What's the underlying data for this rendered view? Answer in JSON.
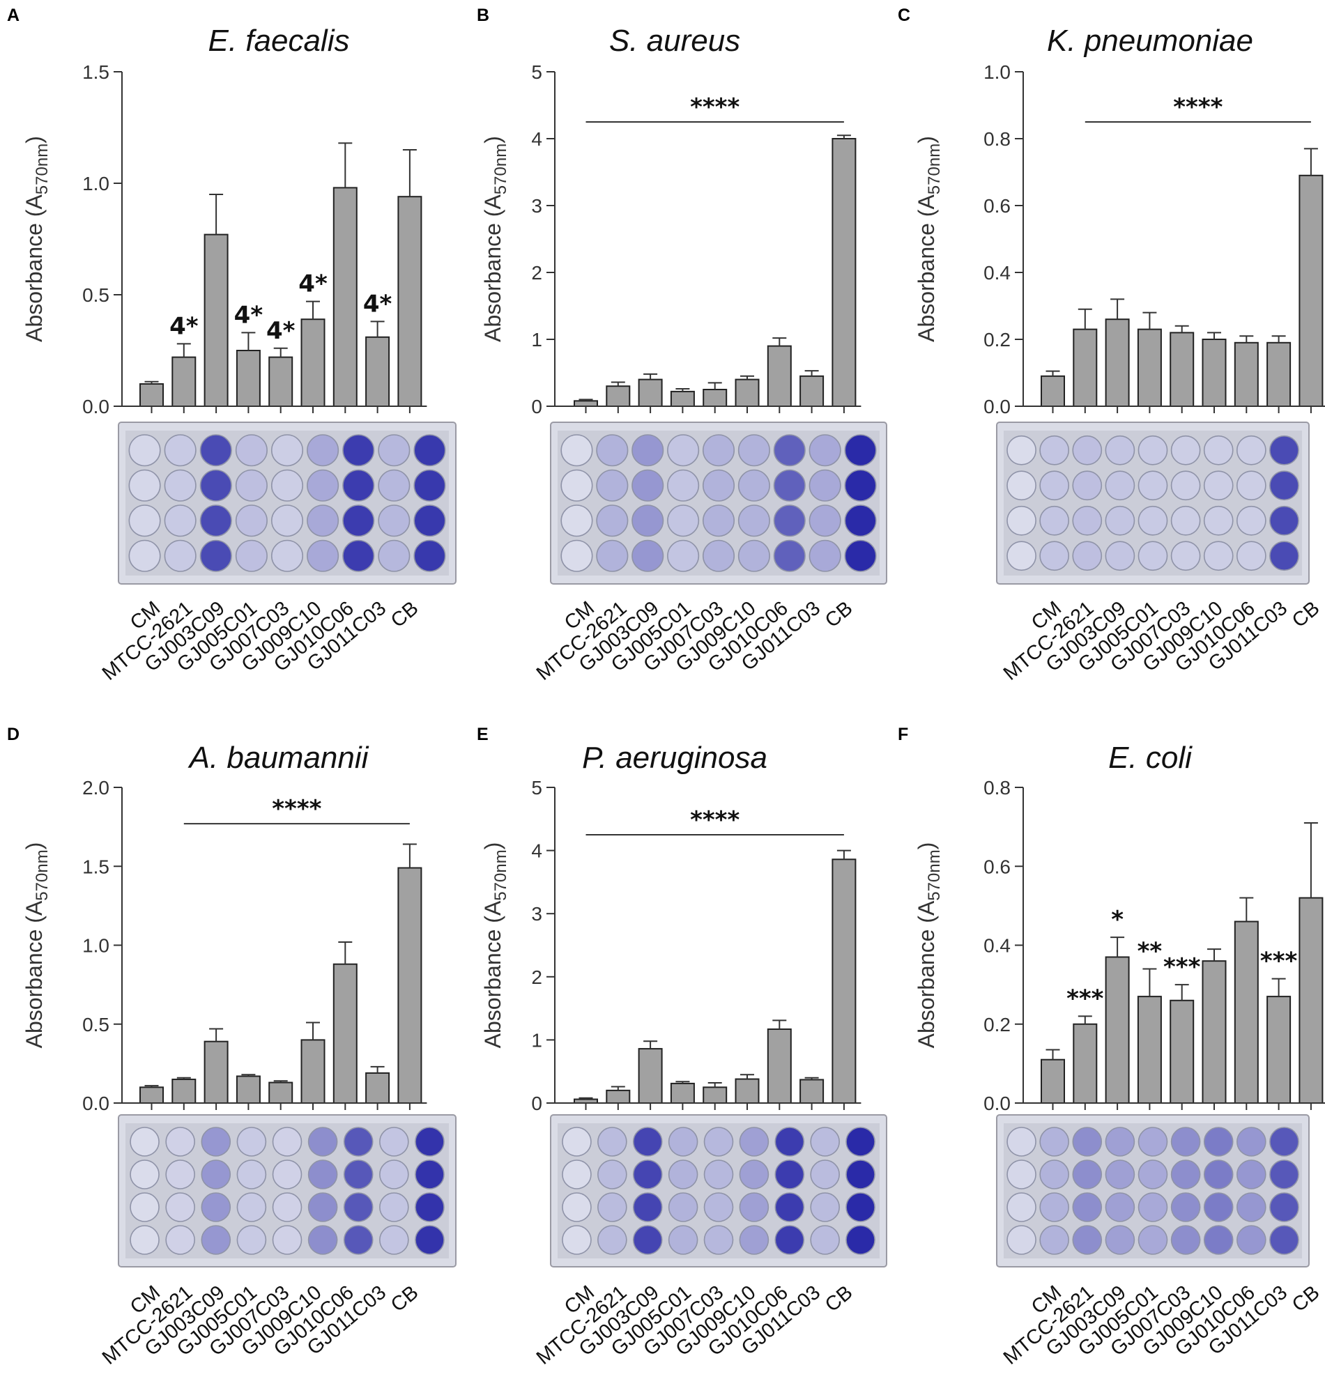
{
  "figure": {
    "categories": [
      "CM",
      "MTCC-2621",
      "GJ003C09",
      "GJ005C01",
      "GJ007C03",
      "GJ009C10",
      "GJ010C06",
      "GJ011C03",
      "CB"
    ],
    "ylabel_prefix": "Absorbance (A",
    "ylabel_subscript": "570nm",
    "ylabel_suffix": ")",
    "bar_color": "#a1a1a1",
    "plate_color": "#cbcdd8",
    "stain_color": "#2a2aa8"
  },
  "chart_data": [
    {
      "type": "bar",
      "panel": "A",
      "title": "E. faecalis",
      "ylim": [
        0,
        1.5
      ],
      "yticks": [
        "0.0",
        "0.5",
        "1.0",
        "1.5"
      ],
      "tick_values": [
        0,
        0.5,
        1.0,
        1.5
      ],
      "values": [
        0.1,
        0.22,
        0.77,
        0.25,
        0.22,
        0.39,
        0.98,
        0.31,
        0.94
      ],
      "errors": [
        0.01,
        0.06,
        0.18,
        0.08,
        0.04,
        0.08,
        0.2,
        0.07,
        0.21
      ],
      "annotations": [
        "",
        "4*",
        "",
        "4*",
        "4*",
        "4*",
        "",
        "4*",
        ""
      ],
      "bracket": null
    },
    {
      "type": "bar",
      "panel": "B",
      "title": "S. aureus",
      "ylim": [
        0,
        5
      ],
      "yticks": [
        "0",
        "1",
        "2",
        "3",
        "4",
        "5"
      ],
      "tick_values": [
        0,
        1,
        2,
        3,
        4,
        5
      ],
      "values": [
        0.08,
        0.3,
        0.4,
        0.22,
        0.25,
        0.4,
        0.9,
        0.45,
        4.0
      ],
      "errors": [
        0.02,
        0.06,
        0.08,
        0.04,
        0.1,
        0.05,
        0.12,
        0.08,
        0.05
      ],
      "annotations": [
        "",
        "",
        "",
        "",
        "",
        "",
        "",
        "",
        ""
      ],
      "bracket": {
        "from": 0,
        "to": 8,
        "y": 4.25,
        "label": "****"
      }
    },
    {
      "type": "bar",
      "panel": "C",
      "title": "K. pneumoniae",
      "ylim": [
        0,
        1.0
      ],
      "yticks": [
        "0.0",
        "0.2",
        "0.4",
        "0.6",
        "0.8",
        "1.0"
      ],
      "tick_values": [
        0,
        0.2,
        0.4,
        0.6,
        0.8,
        1.0
      ],
      "values": [
        0.09,
        0.23,
        0.26,
        0.23,
        0.22,
        0.2,
        0.19,
        0.19,
        0.69
      ],
      "errors": [
        0.015,
        0.06,
        0.06,
        0.05,
        0.02,
        0.02,
        0.02,
        0.02,
        0.08
      ],
      "annotations": [
        "",
        "",
        "",
        "",
        "",
        "",
        "",
        "",
        ""
      ],
      "bracket": {
        "from": 1,
        "to": 8,
        "y": 0.85,
        "label": "****"
      }
    },
    {
      "type": "bar",
      "panel": "D",
      "title": "A. baumannii",
      "ylim": [
        0,
        2.0
      ],
      "yticks": [
        "0.0",
        "0.5",
        "1.0",
        "1.5",
        "2.0"
      ],
      "tick_values": [
        0,
        0.5,
        1.0,
        1.5,
        2.0
      ],
      "values": [
        0.1,
        0.15,
        0.39,
        0.17,
        0.13,
        0.4,
        0.88,
        0.19,
        1.49
      ],
      "errors": [
        0.01,
        0.01,
        0.08,
        0.01,
        0.01,
        0.11,
        0.14,
        0.04,
        0.15
      ],
      "annotations": [
        "",
        "",
        "",
        "",
        "",
        "",
        "",
        "",
        ""
      ],
      "bracket": {
        "from": 1,
        "to": 8,
        "y": 1.77,
        "label": "****"
      }
    },
    {
      "type": "bar",
      "panel": "E",
      "title": "P. aeruginosa",
      "ylim": [
        0,
        5
      ],
      "yticks": [
        "0",
        "1",
        "2",
        "3",
        "4",
        "5"
      ],
      "tick_values": [
        0,
        1,
        2,
        3,
        4,
        5
      ],
      "values": [
        0.06,
        0.2,
        0.86,
        0.31,
        0.25,
        0.38,
        1.17,
        0.37,
        3.86
      ],
      "errors": [
        0.02,
        0.06,
        0.12,
        0.03,
        0.07,
        0.07,
        0.14,
        0.03,
        0.14
      ],
      "annotations": [
        "",
        "",
        "",
        "",
        "",
        "",
        "",
        "",
        ""
      ],
      "bracket": {
        "from": 0,
        "to": 8,
        "y": 4.25,
        "label": "****"
      }
    },
    {
      "type": "bar",
      "panel": "F",
      "title": "E. coli",
      "ylim": [
        0,
        0.8
      ],
      "yticks": [
        "0.0",
        "0.2",
        "0.4",
        "0.6",
        "0.8"
      ],
      "tick_values": [
        0,
        0.2,
        0.4,
        0.6,
        0.8
      ],
      "values": [
        0.11,
        0.2,
        0.37,
        0.27,
        0.26,
        0.36,
        0.46,
        0.27,
        0.52
      ],
      "errors": [
        0.025,
        0.02,
        0.05,
        0.07,
        0.04,
        0.03,
        0.06,
        0.045,
        0.19
      ],
      "annotations": [
        "",
        "***",
        "*",
        "**",
        "***",
        "",
        "",
        "***",
        ""
      ],
      "bracket": null
    }
  ],
  "plates": [
    {
      "panel": "A",
      "stain": [
        0.05,
        0.12,
        0.82,
        0.18,
        0.1,
        0.3,
        0.9,
        0.22,
        0.92
      ]
    },
    {
      "panel": "B",
      "stain": [
        0.02,
        0.25,
        0.4,
        0.15,
        0.25,
        0.25,
        0.7,
        0.3,
        1.0
      ]
    },
    {
      "panel": "C",
      "stain": [
        0.02,
        0.15,
        0.18,
        0.15,
        0.12,
        0.1,
        0.1,
        0.1,
        0.82
      ]
    },
    {
      "panel": "D",
      "stain": [
        0.02,
        0.08,
        0.4,
        0.12,
        0.08,
        0.45,
        0.75,
        0.15,
        0.95
      ]
    },
    {
      "panel": "E",
      "stain": [
        0.02,
        0.2,
        0.85,
        0.25,
        0.22,
        0.35,
        0.9,
        0.2,
        1.0
      ]
    },
    {
      "panel": "F",
      "stain": [
        0.05,
        0.25,
        0.45,
        0.35,
        0.3,
        0.45,
        0.55,
        0.4,
        0.75
      ]
    }
  ]
}
